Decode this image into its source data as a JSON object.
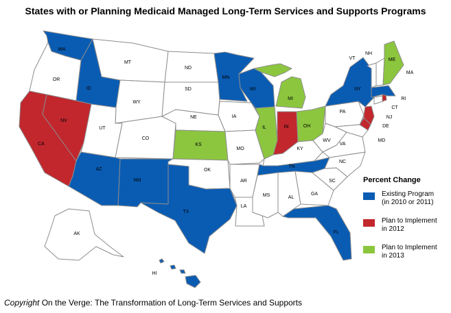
{
  "title": "States with or Planning Medicaid Managed Long-Term Services and Supports Programs",
  "colors": {
    "existing": "#0a5cb3",
    "plan2012": "#c1272d",
    "plan2013": "#8cc63f",
    "none": "#ffffff",
    "border": "#8c8c8c"
  },
  "legend": {
    "title": "Percent Change",
    "items": [
      {
        "key": "existing",
        "label": "Existing Program\n(in 2010 or 2011)"
      },
      {
        "key": "plan2012",
        "label": "Plan to Implement\nin 2012"
      },
      {
        "key": "plan2013",
        "label": "Plan to Implement\nin 2013"
      }
    ]
  },
  "states": {
    "WA": "existing",
    "OR": "none",
    "CA": "plan2012",
    "NV": "plan2012",
    "ID": "existing",
    "MT": "none",
    "WY": "none",
    "UT": "none",
    "CO": "none",
    "AZ": "existing",
    "NM": "existing",
    "ND": "none",
    "SD": "none",
    "NE": "none",
    "KS": "plan2013",
    "OK": "none",
    "TX": "existing",
    "MN": "existing",
    "IA": "none",
    "MO": "none",
    "AR": "none",
    "LA": "none",
    "WI": "existing",
    "IL": "plan2013",
    "MI": "plan2013",
    "IN": "plan2012",
    "OH": "plan2013",
    "KY": "none",
    "TN": "existing",
    "MS": "none",
    "AL": "none",
    "GA": "none",
    "FL": "existing",
    "SC": "none",
    "NC": "none",
    "VA": "none",
    "WV": "none",
    "PA": "none",
    "NY": "existing",
    "NJ": "plan2012",
    "DE": "plan2012",
    "MD": "none",
    "CT": "none",
    "RI": "plan2012",
    "MA": "existing",
    "VT": "none",
    "NH": "none",
    "ME": "plan2013",
    "AK": "none",
    "HI": "existing"
  },
  "credit": {
    "prefix": "Copyright",
    "text": " On the Verge: The Transformation of Long-Term Services and Supports"
  }
}
